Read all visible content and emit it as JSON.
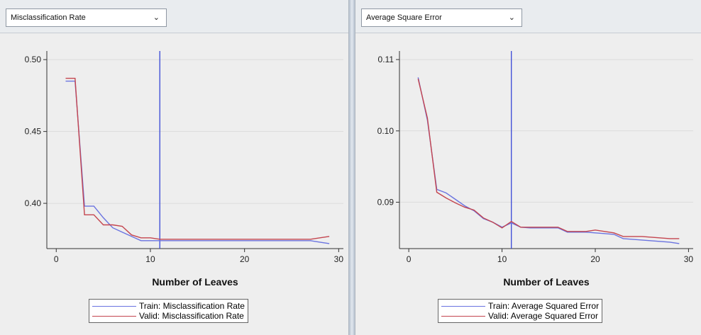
{
  "panels": [
    {
      "dropdown": {
        "value": "Misclassification Rate"
      },
      "legend": [
        {
          "label": "Train: Misclassification Rate",
          "color": "#6a73e0"
        },
        {
          "label": "Valid: Misclassification Rate",
          "color": "#c4454f"
        }
      ]
    },
    {
      "dropdown": {
        "value": "Average Square Error"
      },
      "legend": [
        {
          "label": "Train: Average Squared Error",
          "color": "#6a73e0"
        },
        {
          "label": "Valid: Average Squared Error",
          "color": "#c4454f"
        }
      ]
    }
  ],
  "chart_data": [
    {
      "type": "line",
      "title": "",
      "xlabel": "Number of Leaves",
      "ylabel": "",
      "xlim": [
        -1,
        30.5
      ],
      "ylim": [
        0.3685,
        0.506
      ],
      "xticks": [
        0,
        10,
        20,
        30
      ],
      "yticks": [
        0.4,
        0.45,
        0.5
      ],
      "ytick_labels": [
        "0.40",
        "0.45",
        "0.50"
      ],
      "grid": true,
      "reference_line_x": 11,
      "reference_line_color": "#3646d6",
      "series": [
        {
          "name": "Train: Misclassification Rate",
          "color": "#6a73e0",
          "x": [
            1,
            2,
            3,
            4,
            5,
            6,
            7,
            8,
            9,
            10,
            11,
            12,
            15,
            20,
            25,
            27,
            28,
            29
          ],
          "y": [
            0.485,
            0.485,
            0.398,
            0.398,
            0.39,
            0.383,
            0.38,
            0.377,
            0.374,
            0.374,
            0.374,
            0.374,
            0.374,
            0.374,
            0.374,
            0.374,
            0.373,
            0.372
          ]
        },
        {
          "name": "Valid: Misclassification Rate",
          "color": "#c4454f",
          "x": [
            1,
            2,
            3,
            4,
            5,
            6,
            7,
            8,
            9,
            10,
            11,
            12,
            15,
            20,
            25,
            27,
            28,
            29
          ],
          "y": [
            0.487,
            0.487,
            0.392,
            0.392,
            0.385,
            0.385,
            0.384,
            0.378,
            0.376,
            0.376,
            0.375,
            0.375,
            0.375,
            0.375,
            0.375,
            0.375,
            0.376,
            0.377
          ]
        }
      ]
    },
    {
      "type": "line",
      "title": "",
      "xlabel": "Number of Leaves",
      "ylabel": "",
      "xlim": [
        -1,
        30.5
      ],
      "ylim": [
        0.0835,
        0.1112
      ],
      "xticks": [
        0,
        10,
        20,
        30
      ],
      "yticks": [
        0.09,
        0.1,
        0.11
      ],
      "ytick_labels": [
        "0.09",
        "0.10",
        "0.11"
      ],
      "grid": true,
      "reference_line_x": 11,
      "reference_line_color": "#3646d6",
      "series": [
        {
          "name": "Train: Average Squared Error",
          "color": "#6a73e0",
          "x": [
            1,
            2,
            3,
            4,
            5,
            6,
            7,
            8,
            9,
            10,
            11,
            12,
            13,
            14,
            15,
            16,
            17,
            18,
            19,
            20,
            21,
            22,
            23,
            24,
            25,
            26,
            27,
            28,
            29
          ],
          "y": [
            0.1075,
            0.1015,
            0.0918,
            0.0913,
            0.0904,
            0.0895,
            0.0888,
            0.0877,
            0.0872,
            0.0865,
            0.0871,
            0.0865,
            0.0864,
            0.0864,
            0.0864,
            0.0864,
            0.0858,
            0.0858,
            0.0858,
            0.0857,
            0.0856,
            0.0855,
            0.0849,
            0.0848,
            0.0847,
            0.0846,
            0.0845,
            0.0844,
            0.0842
          ]
        },
        {
          "name": "Valid: Average Squared Error",
          "color": "#c4454f",
          "x": [
            1,
            2,
            3,
            4,
            5,
            6,
            7,
            8,
            9,
            10,
            11,
            12,
            13,
            14,
            15,
            16,
            17,
            18,
            19,
            20,
            21,
            22,
            23,
            24,
            25,
            26,
            27,
            28,
            29
          ],
          "y": [
            0.1073,
            0.1018,
            0.0914,
            0.0906,
            0.0899,
            0.0893,
            0.0889,
            0.0878,
            0.0872,
            0.0864,
            0.0873,
            0.0865,
            0.0865,
            0.0865,
            0.0865,
            0.0865,
            0.0859,
            0.0859,
            0.0859,
            0.0861,
            0.0859,
            0.0857,
            0.0852,
            0.0852,
            0.0852,
            0.0851,
            0.085,
            0.0849,
            0.0849
          ]
        }
      ]
    }
  ]
}
